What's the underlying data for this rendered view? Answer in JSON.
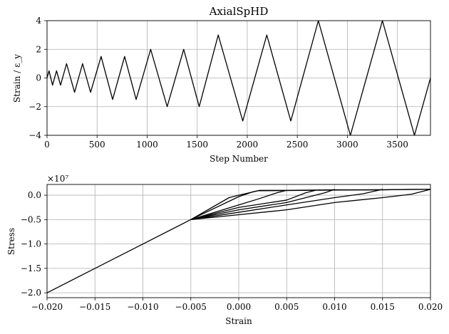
{
  "chart_data": [
    {
      "type": "line",
      "title": "AxialSpHD",
      "xlabel": "Step Number",
      "ylabel": "Strain / ε_y",
      "xlim": [
        0,
        3830
      ],
      "ylim": [
        -4,
        4
      ],
      "xticks": [
        0,
        500,
        1000,
        1500,
        2000,
        2500,
        3000,
        3500
      ],
      "xtick_labels": [
        "0",
        "500",
        "1000",
        "1500",
        "2000",
        "2500",
        "3000",
        "3500"
      ],
      "yticks": [
        4,
        2,
        0,
        -2,
        -4
      ],
      "ytick_labels": [
        "4",
        "2",
        "0",
        "−2",
        "−4"
      ],
      "grid": true,
      "series": [
        {
          "x": [
            0,
            20,
            55,
            95,
            135,
            195,
            275,
            355,
            435,
            540,
            655,
            775,
            890,
            1035,
            1200,
            1365,
            1520,
            1710,
            1955,
            2195,
            2435,
            2710,
            3030,
            3350,
            3670,
            3830
          ],
          "y": [
            0,
            0.5,
            -0.5,
            0.5,
            -0.5,
            1,
            -1,
            1,
            -1,
            1.5,
            -1.5,
            1.5,
            -1.5,
            2,
            -2,
            2,
            -2,
            3,
            -3,
            3,
            -3,
            4,
            -4,
            4,
            -4,
            0
          ]
        }
      ]
    },
    {
      "type": "line",
      "xlabel": "Strain",
      "ylabel": "Stress",
      "offset_label": "×10⁷",
      "xlim": [
        -0.02,
        0.02
      ],
      "ylim": [
        -2.1,
        0.22
      ],
      "xticks": [
        -0.02,
        -0.015,
        -0.01,
        -0.005,
        0,
        0.005,
        0.01,
        0.015,
        0.02
      ],
      "xtick_labels": [
        "−0.020",
        "−0.015",
        "−0.010",
        "−0.005",
        "0.000",
        "0.005",
        "0.010",
        "0.015",
        "0.020"
      ],
      "yticks": [
        0,
        -0.5,
        -1,
        -1.5,
        -2
      ],
      "ytick_labels": [
        "0.0",
        "−0.5",
        "−1.0",
        "−1.5",
        "−2.0"
      ],
      "grid": true,
      "series": [
        {
          "x": [
            -0.02,
            -0.005,
            -0.001,
            0.0,
            0.002,
            0.02
          ],
          "y": [
            -2.0,
            -0.5,
            -0.05,
            0.0,
            0.09,
            0.12
          ]
        },
        {
          "x": [
            -0.005,
            0.0,
            0.0015,
            0.0022,
            0.005,
            0.01,
            0.015,
            0.018,
            0.02
          ],
          "y": [
            -0.5,
            -0.03,
            0.07,
            0.1,
            0.1,
            0.11,
            0.11,
            0.12,
            0.12
          ]
        },
        {
          "x": [
            -0.005,
            0.0,
            0.002,
            0.004,
            0.005
          ],
          "y": [
            -0.5,
            -0.2,
            -0.08,
            0.05,
            0.1
          ]
        },
        {
          "x": [
            -0.005,
            0.0,
            0.005,
            0.007,
            0.008
          ],
          "y": [
            -0.5,
            -0.25,
            -0.1,
            0.05,
            0.1
          ]
        },
        {
          "x": [
            -0.005,
            0.0,
            0.005,
            0.009,
            0.01
          ],
          "y": [
            -0.5,
            -0.3,
            -0.15,
            0.05,
            0.12
          ]
        },
        {
          "x": [
            -0.005,
            0.0,
            0.005,
            0.01,
            0.013,
            0.015
          ],
          "y": [
            -0.5,
            -0.35,
            -0.2,
            -0.05,
            0.03,
            0.12
          ]
        },
        {
          "x": [
            -0.005,
            0.0,
            0.005,
            0.01,
            0.015,
            0.018,
            0.02
          ],
          "y": [
            -0.5,
            -0.4,
            -0.3,
            -0.15,
            -0.05,
            0.02,
            0.12
          ]
        }
      ]
    }
  ]
}
